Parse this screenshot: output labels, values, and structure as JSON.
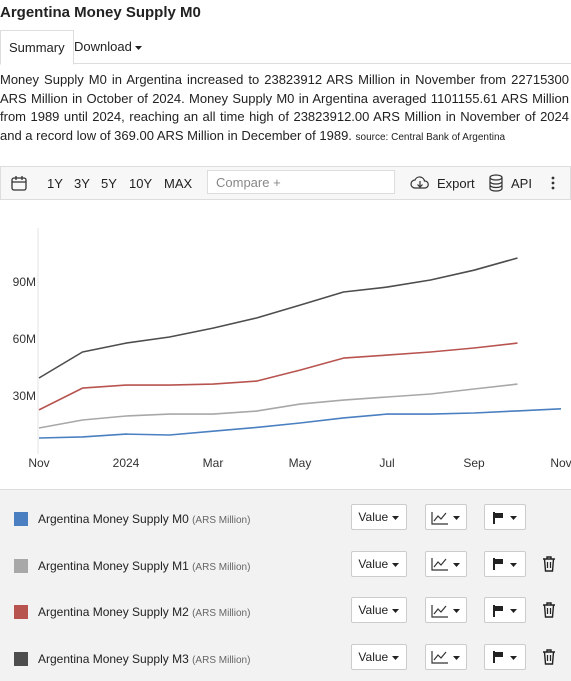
{
  "header": {
    "title": "Argentina Money Supply M0"
  },
  "tabs": [
    "Summary",
    "Download"
  ],
  "description": {
    "text": "Money Supply M0 in Argentina increased to 23823912 ARS Million in November from 22715300 ARS Million in October of 2024. Money Supply M0 in Argentina averaged 1101155.61 ARS Million from 1989 until 2024, reaching an all time high of 23823912.00 ARS Million in November of 2024 and a record low of 369.00 ARS Million in December of 1989.",
    "source": "source: Central Bank of Argentina"
  },
  "toolbar": {
    "ranges": [
      "1Y",
      "3Y",
      "5Y",
      "10Y",
      "MAX"
    ],
    "compare": "Compare +",
    "export": "Export",
    "api": "API"
  },
  "chart_data": {
    "type": "line",
    "categories": [
      "Nov",
      null,
      "2024",
      null,
      "Mar",
      null,
      "May",
      null,
      "Jul",
      null,
      "Sep",
      null,
      "Nov"
    ],
    "ylim": [
      0,
      119
    ],
    "yticks": [
      {
        "value": 30,
        "label": "30M"
      },
      {
        "value": 60,
        "label": "60M"
      },
      {
        "value": 90,
        "label": "90M"
      }
    ],
    "grid": false,
    "unit": "(ARS Million)",
    "series": [
      {
        "name": "Argentina Money Supply M0",
        "color": "#4a7fc1",
        "values": [
          8.4,
          9,
          10.5,
          10,
          12,
          14,
          16.3,
          19,
          21,
          21,
          21.6,
          22.7,
          23.8
        ]
      },
      {
        "name": "Argentina Money Supply M1",
        "color": "#a8a8a8",
        "values": [
          13.7,
          17.9,
          20,
          21,
          21,
          22.6,
          26.3,
          28.4,
          30,
          31.6,
          34.2,
          36.8,
          null
        ]
      },
      {
        "name": "Argentina Money Supply M2",
        "color": "#b85450",
        "values": [
          23.2,
          34.7,
          36.3,
          36.3,
          36.8,
          38.4,
          44.2,
          50.5,
          52.1,
          53.7,
          55.8,
          58.4,
          null
        ]
      },
      {
        "name": "Argentina Money Supply M3",
        "color": "#4d4d4d",
        "values": [
          40,
          53.7,
          58.4,
          61.6,
          66.3,
          71.6,
          78.4,
          85.3,
          87.9,
          91.6,
          96.8,
          103.2,
          null
        ]
      }
    ]
  },
  "legend_controls": {
    "value": "Value"
  }
}
